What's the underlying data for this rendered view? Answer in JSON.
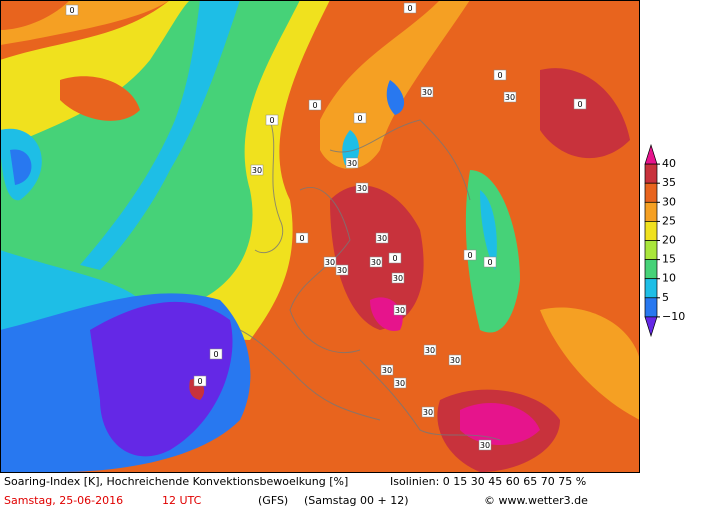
{
  "map": {
    "isoline_labels": [
      "0",
      "0",
      "0",
      "30",
      "0",
      "0",
      "30",
      "0",
      "0",
      "30",
      "30",
      "30",
      "30",
      "0",
      "30",
      "30",
      "30",
      "0",
      "30",
      "30",
      "30",
      "30",
      "0",
      "0",
      "30",
      "0",
      "30",
      "30",
      "0",
      "30"
    ]
  },
  "legend": {
    "ticks": [
      40,
      35,
      30,
      25,
      20,
      15,
      10,
      5,
      {
        "value": -10,
        "label": "−10"
      }
    ],
    "colors": [
      "#e6148c",
      "#c8323c",
      "#e8641e",
      "#f5a023",
      "#f0e11e",
      "#aae63c",
      "#46d278",
      "#1ebee6",
      "#2878f0",
      "#6428e6"
    ]
  },
  "footer": {
    "description": "Soaring-Index [K], Hochreichende Konvektionsbewoelkung [%]",
    "isolines": "Isolinien: 0 15 30 45 60 65 70 75 %",
    "date": "Samstag, 25-06-2016",
    "time": "12 UTC",
    "model": "(GFS)",
    "run": "(Samstag 00 + 12)",
    "copyright": "© www.wetter3.de"
  }
}
